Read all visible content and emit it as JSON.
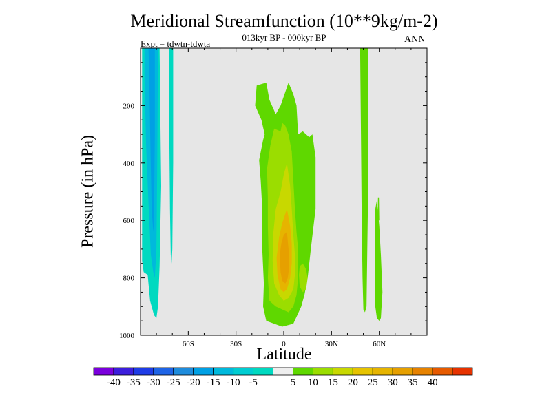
{
  "chart_data": {
    "type": "heatmap",
    "title": "Meridional Streamfunction (10**9kg/m-2)",
    "subtitle": "013kyr BP - 000kyr BP",
    "annotation_left": "Expt = tdwtn-tdwta",
    "annotation_right": "ANN",
    "xlabel": "Latitude",
    "ylabel": "Pressure (in hPa)",
    "xlim": [
      -90,
      90
    ],
    "ylim": [
      1000,
      0
    ],
    "x_ticks": [
      -60,
      -30,
      0,
      30,
      60
    ],
    "x_tick_labels": [
      "60S",
      "30S",
      "0",
      "30N",
      "60N"
    ],
    "y_ticks": [
      200,
      400,
      600,
      800,
      1000
    ],
    "y_tick_labels": [
      "200",
      "400",
      "600",
      "800",
      "1000"
    ],
    "background_color": "#e6e6e6",
    "regions": [
      {
        "value": -10,
        "color": "#00d9c0",
        "points": [
          [
            -88.5,
            0
          ],
          [
            -78,
            0
          ],
          [
            -77,
            480
          ],
          [
            -78,
            760
          ],
          [
            -79,
            900
          ],
          [
            -80,
            940
          ],
          [
            -81.5,
            930
          ],
          [
            -84,
            880
          ],
          [
            -85.5,
            790
          ],
          [
            -88,
            780
          ],
          [
            -89,
            740
          ],
          [
            -89,
            0
          ]
        ]
      },
      {
        "value": -15,
        "color": "#00b9dc",
        "points": [
          [
            -87.5,
            0
          ],
          [
            -79,
            0
          ],
          [
            -79.5,
            400
          ],
          [
            -80,
            700
          ],
          [
            -81,
            800
          ],
          [
            -82,
            780
          ],
          [
            -83.5,
            720
          ],
          [
            -85,
            540
          ],
          [
            -86.5,
            340
          ],
          [
            -87.5,
            100
          ]
        ]
      },
      {
        "value": -20,
        "color": "#00a0e4",
        "points": [
          [
            -85,
            0
          ],
          [
            -81,
            0
          ],
          [
            -81,
            300
          ],
          [
            -81.5,
            600
          ],
          [
            -82,
            640
          ],
          [
            -83,
            560
          ],
          [
            -84,
            280
          ],
          [
            -84.5,
            100
          ]
        ]
      },
      {
        "value": -10,
        "color": "#00d9c0",
        "points": [
          [
            -72,
            0
          ],
          [
            -69.5,
            0
          ],
          [
            -69.5,
            400
          ],
          [
            -70,
            700
          ],
          [
            -70.5,
            750
          ],
          [
            -71,
            720
          ],
          [
            -71.5,
            560
          ],
          [
            -72,
            240
          ]
        ]
      },
      {
        "value": 5,
        "color": "#5fd800",
        "points": [
          [
            -17,
            130
          ],
          [
            -11,
            120
          ],
          [
            -9,
            180
          ],
          [
            -5,
            230
          ],
          [
            -2,
            200
          ],
          [
            3,
            120
          ],
          [
            6,
            160
          ],
          [
            8,
            200
          ],
          [
            9,
            300
          ],
          [
            12,
            290
          ],
          [
            16,
            310
          ],
          [
            18,
            300
          ],
          [
            20,
            380
          ],
          [
            20,
            560
          ],
          [
            17,
            700
          ],
          [
            15,
            800
          ],
          [
            13,
            860
          ],
          [
            11,
            900
          ],
          [
            6,
            960
          ],
          [
            -1,
            970
          ],
          [
            -6,
            960
          ],
          [
            -11,
            950
          ],
          [
            -13,
            900
          ],
          [
            -12.5,
            820
          ],
          [
            -13.5,
            700
          ],
          [
            -13.5,
            560
          ],
          [
            -14.5,
            460
          ],
          [
            -15.5,
            390
          ],
          [
            -13,
            320
          ],
          [
            -12,
            300
          ],
          [
            -14,
            250
          ],
          [
            -18,
            200
          ]
        ]
      },
      {
        "value": 10,
        "color": "#9bdd00",
        "points": [
          [
            -6,
            280
          ],
          [
            -2,
            290
          ],
          [
            -1,
            260
          ],
          [
            1,
            270
          ],
          [
            3,
            300
          ],
          [
            5,
            360
          ],
          [
            6,
            460
          ],
          [
            7,
            560
          ],
          [
            8,
            640
          ],
          [
            9,
            700
          ],
          [
            9,
            800
          ],
          [
            8,
            860
          ],
          [
            6,
            900
          ],
          [
            3,
            920
          ],
          [
            -1,
            910
          ],
          [
            -5,
            900
          ],
          [
            -9,
            880
          ],
          [
            -10,
            800
          ],
          [
            -9.5,
            720
          ],
          [
            -10,
            620
          ],
          [
            -10,
            520
          ],
          [
            -10.5,
            420
          ],
          [
            -8.5,
            340
          ]
        ]
      },
      {
        "value": 15,
        "color": "#c8d800",
        "points": [
          [
            2,
            400
          ],
          [
            4,
            480
          ],
          [
            5,
            560
          ],
          [
            6,
            650
          ],
          [
            7,
            720
          ],
          [
            7,
            790
          ],
          [
            6,
            840
          ],
          [
            3,
            870
          ],
          [
            0,
            880
          ],
          [
            -3,
            860
          ],
          [
            -6,
            820
          ],
          [
            -7,
            740
          ],
          [
            -6.5,
            640
          ],
          [
            -5,
            560
          ],
          [
            -2,
            500
          ],
          [
            0,
            440
          ]
        ]
      },
      {
        "value": 20,
        "color": "#e6b400",
        "points": [
          [
            2,
            560
          ],
          [
            4,
            620
          ],
          [
            5,
            680
          ],
          [
            5,
            750
          ],
          [
            4,
            800
          ],
          [
            2,
            840
          ],
          [
            0,
            850
          ],
          [
            -2,
            840
          ],
          [
            -4,
            790
          ],
          [
            -4.5,
            730
          ],
          [
            -3,
            660
          ],
          [
            -1,
            610
          ]
        ]
      },
      {
        "value": 25,
        "color": "#e6a000",
        "points": [
          [
            2,
            640
          ],
          [
            3,
            700
          ],
          [
            3.5,
            760
          ],
          [
            2.5,
            800
          ],
          [
            1,
            820
          ],
          [
            -1,
            810
          ],
          [
            -2,
            780
          ],
          [
            -2.5,
            720
          ],
          [
            -1.5,
            680
          ],
          [
            0,
            650
          ]
        ]
      },
      {
        "value": 10,
        "color": "#9bdd00",
        "points": [
          [
            10,
            760
          ],
          [
            12,
            750
          ],
          [
            14,
            770
          ],
          [
            15,
            800
          ],
          [
            14,
            840
          ],
          [
            12,
            850
          ],
          [
            10,
            830
          ],
          [
            9.5,
            790
          ]
        ]
      },
      {
        "value": 5,
        "color": "#5fd800",
        "points": [
          [
            48,
            0
          ],
          [
            53,
            0
          ],
          [
            53,
            500
          ],
          [
            52.5,
            700
          ],
          [
            52,
            900
          ],
          [
            51,
            920
          ],
          [
            50,
            910
          ],
          [
            49.5,
            800
          ],
          [
            49,
            600
          ],
          [
            48.5,
            300
          ]
        ]
      },
      {
        "value": 5,
        "color": "#5fd800",
        "points": [
          [
            57.5,
            560
          ],
          [
            58.5,
            530
          ],
          [
            60,
            620
          ],
          [
            61,
            720
          ],
          [
            62,
            850
          ],
          [
            61,
            940
          ],
          [
            60,
            950
          ],
          [
            58.5,
            940
          ],
          [
            57.5,
            900
          ],
          [
            57.5,
            700
          ]
        ]
      },
      {
        "value": 5,
        "color": "#5fd800",
        "points": [
          [
            59.2,
            520
          ],
          [
            59.8,
            520
          ],
          [
            60,
            600
          ],
          [
            59,
            600
          ]
        ]
      }
    ]
  },
  "colorbar": {
    "colors": [
      "#7a00dc",
      "#3c1edc",
      "#1e3ce6",
      "#1e64e6",
      "#1e8cdc",
      "#00a0e4",
      "#00b9dc",
      "#00cdd2",
      "#00d9c0",
      "#eeeeee",
      "#5fd800",
      "#9bdd00",
      "#c8d800",
      "#e6c300",
      "#e6b400",
      "#e6a000",
      "#e68200",
      "#e65a00",
      "#e63200"
    ],
    "labels": [
      "-40",
      "-35",
      "-30",
      "-25",
      "-20",
      "-15",
      "-10",
      "-5",
      "5",
      "10",
      "15",
      "20",
      "25",
      "30",
      "35",
      "40"
    ]
  }
}
